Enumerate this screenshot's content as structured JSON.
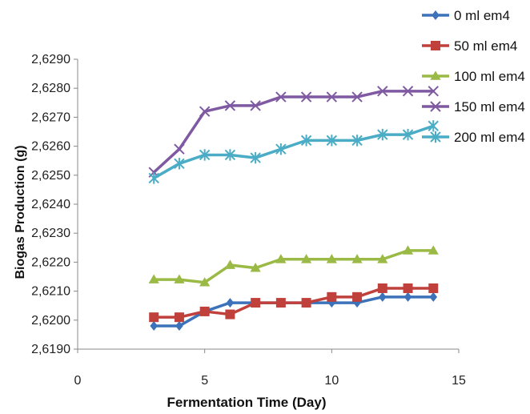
{
  "chart_data": {
    "type": "line",
    "title": "",
    "xlabel": "Fermentation Time (Day)",
    "ylabel": "Biogas Production (g)",
    "xlim": [
      0,
      15
    ],
    "ylim": [
      2.619,
      2.629
    ],
    "x_ticks": [
      0,
      5,
      10,
      15
    ],
    "x_tick_labels": [
      "0",
      "5",
      "10",
      "15"
    ],
    "y_ticks": [
      2.619,
      2.62,
      2.621,
      2.622,
      2.623,
      2.624,
      2.625,
      2.626,
      2.627,
      2.628,
      2.629
    ],
    "y_tick_labels": [
      "2,6190",
      "2,6200",
      "2,6210",
      "2,6220",
      "2,6230",
      "2,6240",
      "2,6250",
      "2,6260",
      "2,6270",
      "2,6280",
      "2,6290"
    ],
    "grid": false,
    "legend_position": "top-right",
    "x": [
      3,
      4,
      5,
      6,
      7,
      8,
      9,
      10,
      11,
      12,
      13,
      14
    ],
    "series": [
      {
        "name": "0 ml em4",
        "color": "#3b72b9",
        "marker": "diamond",
        "values": [
          2.6198,
          2.6198,
          2.6203,
          2.6206,
          2.6206,
          2.6206,
          2.6206,
          2.6206,
          2.6206,
          2.6208,
          2.6208,
          2.6208
        ]
      },
      {
        "name": "50 ml em4",
        "color": "#c0403c",
        "marker": "square",
        "values": [
          2.6201,
          2.6201,
          2.6203,
          2.6202,
          2.6206,
          2.6206,
          2.6206,
          2.6208,
          2.6208,
          2.6211,
          2.6211,
          2.6211
        ]
      },
      {
        "name": "100 ml em4",
        "color": "#9aba45",
        "marker": "triangle",
        "values": [
          2.6214,
          2.6214,
          2.6213,
          2.6219,
          2.6218,
          2.6221,
          2.6221,
          2.6221,
          2.6221,
          2.6221,
          2.6224,
          2.6224
        ]
      },
      {
        "name": "150 ml em4",
        "color": "#7f5aa2",
        "marker": "x",
        "values": [
          2.6251,
          2.6259,
          2.6272,
          2.6274,
          2.6274,
          2.6277,
          2.6277,
          2.6277,
          2.6277,
          2.6279,
          2.6279,
          2.6279
        ]
      },
      {
        "name": "200 ml em4",
        "color": "#4bacc6",
        "marker": "star",
        "values": [
          2.6249,
          2.6254,
          2.6257,
          2.6257,
          2.6256,
          2.6259,
          2.6262,
          2.6262,
          2.6262,
          2.6264,
          2.6264,
          2.6267
        ]
      }
    ]
  }
}
